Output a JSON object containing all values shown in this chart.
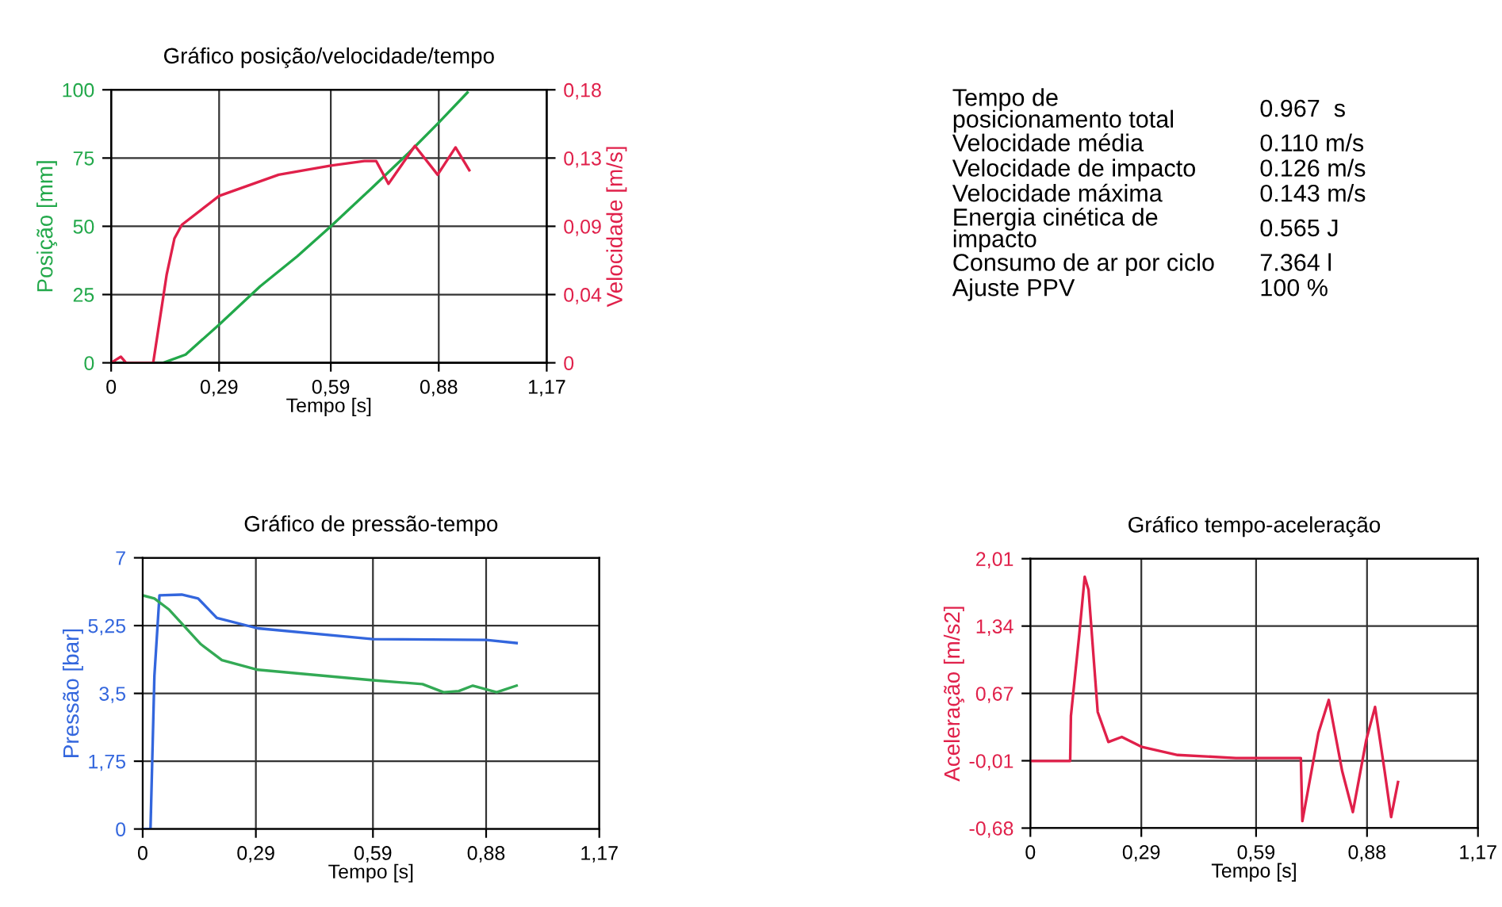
{
  "chart_data": [
    {
      "type": "line",
      "title": "Gráfico posição/velocidade/tempo",
      "xlabel": "Tempo [s]",
      "ylabel": "Posição [mm]",
      "y2label": "Velocidade [m/s]",
      "xlim": [
        0,
        1.17
      ],
      "xticks": [
        0,
        {
          "value": 0.29,
          "label": "0,29"
        },
        {
          "value": 0.59,
          "label": "0,59"
        },
        {
          "value": 0.88,
          "label": "0,88"
        },
        {
          "value": 1.17,
          "label": "1,17"
        }
      ],
      "ylim": [
        0,
        100
      ],
      "yticks": [
        0,
        25,
        50,
        75,
        100
      ],
      "y2lim": [
        0,
        0.18
      ],
      "y2ticks": [
        0,
        {
          "value": 0.045,
          "label": "0,04"
        },
        {
          "value": 0.09,
          "label": "0,09"
        },
        {
          "value": 0.135,
          "label": "0,13"
        },
        {
          "value": 0.18,
          "label": "0,18"
        }
      ],
      "grid": true,
      "series": [
        {
          "color": "#22a84a",
          "x": [
            0,
            0.14,
            0.2,
            0.29,
            0.4,
            0.5,
            0.59,
            0.7,
            0.8,
            0.88,
            0.957
          ],
          "values": [
            0,
            0,
            3,
            14,
            28,
            39,
            50,
            64,
            77,
            88,
            99
          ]
        },
        {
          "color": "#e0204a",
          "axis": "y2",
          "x": [
            0,
            0.026,
            0.04,
            0.113,
            0.149,
            0.17,
            0.19,
            0.29,
            0.45,
            0.59,
            0.68,
            0.712,
            0.745,
            0.816,
            0.877,
            0.925,
            0.962
          ],
          "values": [
            0,
            0.004,
            0,
            0,
            0.058,
            0.082,
            0.091,
            0.11,
            0.124,
            0.13,
            0.133,
            0.133,
            0.118,
            0.143,
            0.124,
            0.142,
            0.127
          ]
        }
      ]
    },
    {
      "type": "other",
      "annotations": [
        "Tempo de\nposicionamento total",
        "0.967  s",
        "Velocidade média",
        "0.110 m/s",
        "Velocidade de impacto",
        "0.126 m/s",
        "Velocidade máxima",
        "0.143 m/s",
        "Energia cinética de\nimpacto",
        "0.565 J",
        "Consumo de ar por ciclo",
        "7.364 l",
        "Ajuste PPV",
        "100 %"
      ]
    },
    {
      "type": "line",
      "title": "Gráfico de pressão-tempo",
      "xlabel": "Tempo [s]",
      "ylabel": "Pressão [bar]",
      "xlim": [
        0,
        1.17
      ],
      "xticks": [
        0,
        {
          "value": 0.29,
          "label": "0,29"
        },
        {
          "value": 0.59,
          "label": "0,59"
        },
        {
          "value": 0.88,
          "label": "0,88"
        },
        {
          "value": 1.17,
          "label": "1,17"
        }
      ],
      "ylim": [
        0,
        7
      ],
      "yticks": [
        0,
        {
          "value": 1.75,
          "label": "1,75"
        },
        {
          "value": 3.5,
          "label": "3,5"
        },
        {
          "value": 5.25,
          "label": "5,25"
        },
        7
      ],
      "grid": true,
      "series": [
        {
          "color": "#3366dd",
          "x": [
            0,
            0.02,
            0.03,
            0.043,
            0.1,
            0.142,
            0.19,
            0.295,
            0.59,
            0.88,
            0.958
          ],
          "values": [
            0,
            0,
            3.95,
            6.03,
            6.05,
            5.95,
            5.45,
            5.18,
            4.9,
            4.88,
            4.8
          ]
        },
        {
          "color": "#33aa55",
          "x": [
            0,
            0.03,
            0.068,
            0.149,
            0.203,
            0.295,
            0.59,
            0.717,
            0.771,
            0.81,
            0.846,
            0.907,
            0.958
          ],
          "values": [
            6.03,
            5.95,
            5.66,
            4.77,
            4.36,
            4.11,
            3.84,
            3.74,
            3.53,
            3.56,
            3.7,
            3.53,
            3.7
          ]
        }
      ]
    },
    {
      "type": "line",
      "title": "Gráfico tempo-aceleração",
      "xlabel": "Tempo [s]",
      "ylabel": "Aceleração [m/s2]",
      "xlim": [
        0,
        1.17
      ],
      "xticks": [
        0,
        {
          "value": 0.29,
          "label": "0,29"
        },
        {
          "value": 0.59,
          "label": "0,59"
        },
        {
          "value": 0.88,
          "label": "0,88"
        },
        {
          "value": 1.17,
          "label": "1,17"
        }
      ],
      "ylim": [
        -0.68,
        2.01
      ],
      "yticks": [
        {
          "value": -0.68,
          "label": "-0,68"
        },
        {
          "value": -0.0075,
          "label": "-0,01"
        },
        {
          "value": 0.665,
          "label": "0,67"
        },
        {
          "value": 1.3375,
          "label": "1,34"
        },
        {
          "value": 2.01,
          "label": "2,01"
        }
      ],
      "grid": true,
      "series": [
        {
          "color": "#e0204a",
          "x": [
            0,
            0.104,
            0.106,
            0.128,
            0.142,
            0.152,
            0.176,
            0.204,
            0.239,
            0.292,
            0.385,
            0.537,
            0.707,
            0.711,
            0.753,
            0.78,
            0.815,
            0.843,
            0.878,
            0.901,
            0.926,
            0.943,
            0.961
          ],
          "values": [
            -0.01,
            -0.01,
            0.44,
            1.26,
            1.83,
            1.7,
            0.48,
            0.18,
            0.23,
            0.13,
            0.05,
            0.02,
            0.02,
            -0.61,
            0.27,
            0.6,
            -0.11,
            -0.52,
            0.2,
            0.53,
            -0.11,
            -0.57,
            -0.22
          ]
        }
      ]
    }
  ]
}
